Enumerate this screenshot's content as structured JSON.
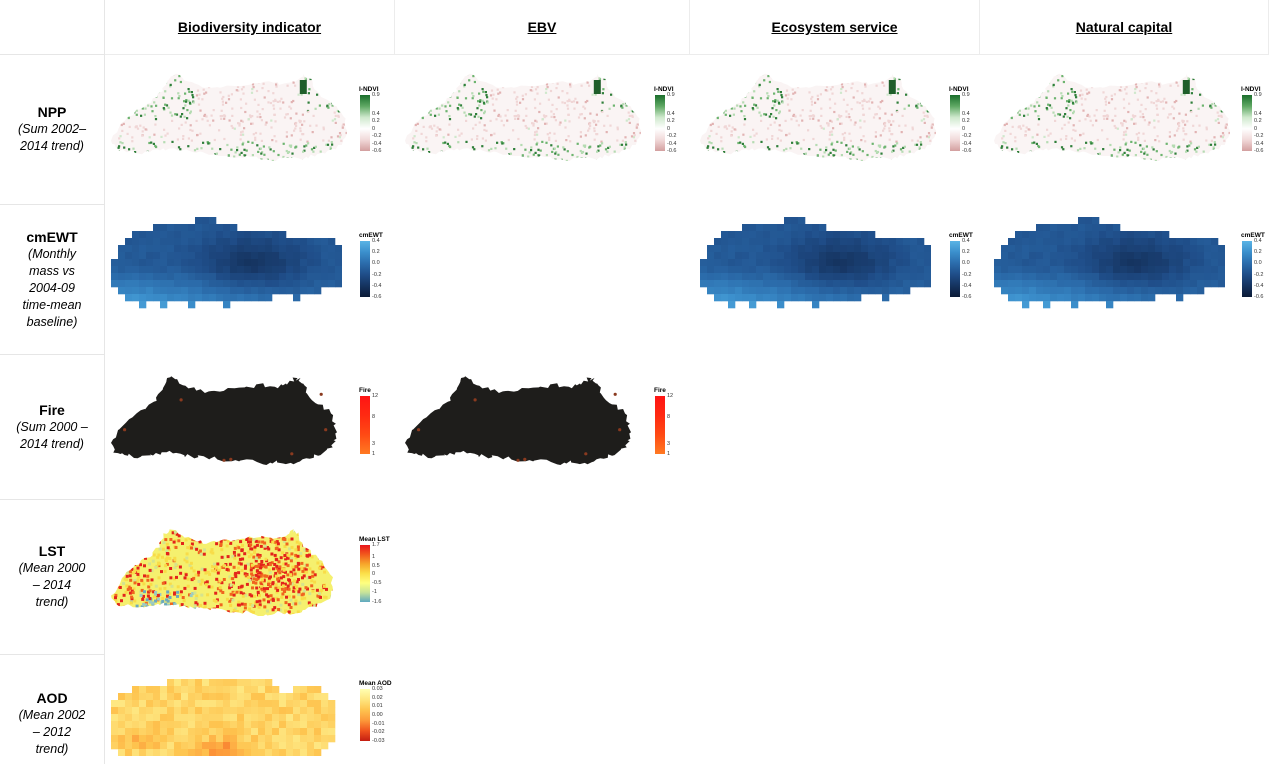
{
  "columns": [
    "Biodiversity indicator",
    "EBV",
    "Ecosystem service",
    "Natural capital"
  ],
  "rows": [
    {
      "label": "NPP",
      "subtitle": [
        "(Sum 2002–",
        "2014 trend)"
      ],
      "shown": [
        true,
        true,
        true,
        true
      ],
      "legend": {
        "title": "I-NDVI",
        "ticks": [
          "0.9",
          "0.4",
          "0.2",
          "0",
          "-0.2",
          "-0.4",
          "-0.6"
        ],
        "palette": [
          "#1b6e2c",
          "#5fa863",
          "#cfe9cd",
          "#ffffff",
          "#f1d9d9",
          "#d39f9f"
        ]
      }
    },
    {
      "label": "cmEWT",
      "subtitle": [
        "(Monthly",
        "mass vs",
        "2004-09",
        "time-mean",
        "baseline)"
      ],
      "shown": [
        true,
        false,
        true,
        true
      ],
      "legend": {
        "title": "cmEWT",
        "ticks": [
          "0.4",
          "0.2",
          "0.0",
          "-0.2",
          "-0.4",
          "-0.6"
        ],
        "palette": [
          "#5ab4e5",
          "#3b8fcc",
          "#2b6cab",
          "#1f4d88",
          "#15335f",
          "#0b1a36"
        ]
      }
    },
    {
      "label": "Fire",
      "subtitle": [
        "(Sum 2000 –",
        "2014 trend)"
      ],
      "shown": [
        true,
        true,
        false,
        false
      ],
      "legend": {
        "title": "Fire",
        "ticks": [
          "12",
          "8",
          "3",
          "1"
        ],
        "palette": [
          "#ff1414",
          "#ff2a12",
          "#ff4a14",
          "#ff7a22"
        ]
      }
    },
    {
      "label": "LST",
      "subtitle": [
        "(Mean 2000",
        "– 2014",
        "trend)"
      ],
      "shown": [
        true,
        false,
        false,
        false
      ],
      "legend": {
        "title": "Mean LST",
        "ticks": [
          "1.7",
          "1",
          "0.5",
          "0",
          "-0.5",
          "-1",
          "-1.6"
        ],
        "palette": [
          "#e8141b",
          "#f25a1d",
          "#f7a62b",
          "#fbe04a",
          "#ffff80",
          "#c7e39a",
          "#5ea9c0"
        ]
      }
    },
    {
      "label": "AOD",
      "subtitle": [
        "(Mean 2002",
        "– 2012",
        "trend)"
      ],
      "shown": [
        true,
        false,
        false,
        false
      ],
      "legend": {
        "title": "Mean AOD",
        "ticks": [
          "0.03",
          "0.02",
          "0.01",
          "0.00",
          "-0.01",
          "-0.02",
          "-0.03"
        ],
        "palette": [
          "#ffffb2",
          "#fee680",
          "#fec44f",
          "#fd9a3a",
          "#f0541e",
          "#c41e12"
        ]
      }
    }
  ]
}
